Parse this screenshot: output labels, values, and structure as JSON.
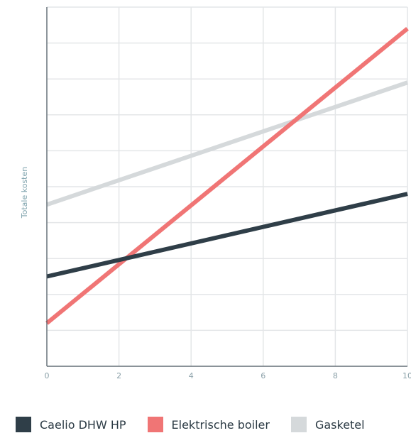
{
  "chart_data": {
    "type": "line",
    "title": "",
    "xlabel": "",
    "ylabel": "Totale kosten",
    "x": [
      0,
      10
    ],
    "xticks": [
      "0",
      "2",
      "4",
      "6",
      "8",
      "10"
    ],
    "xlim": [
      0,
      10
    ],
    "ylim": [
      0,
      10
    ],
    "grid": true,
    "legend_position": "bottom",
    "series": [
      {
        "name": "Caelio DHW HP",
        "color": "#2f3e48",
        "values": [
          2.5,
          4.8
        ]
      },
      {
        "name": "Elektrische boiler",
        "color": "#f07575",
        "values": [
          1.2,
          9.4
        ]
      },
      {
        "name": "Gasketel",
        "color": "#d5d9db",
        "values": [
          4.5,
          7.9
        ]
      }
    ]
  }
}
